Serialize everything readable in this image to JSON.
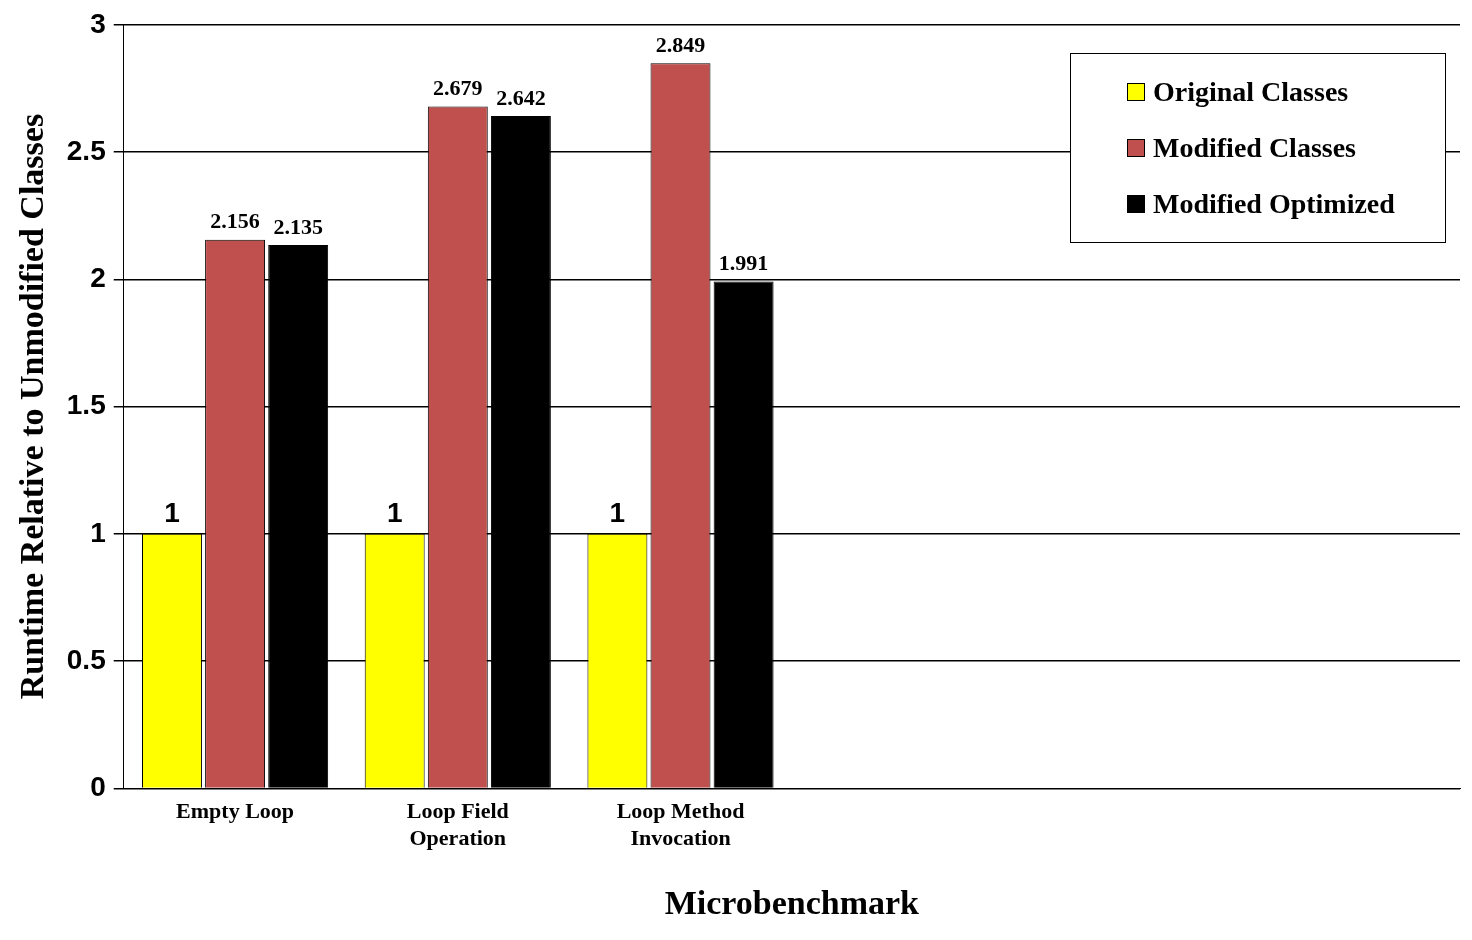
{
  "chart_data": {
    "type": "bar",
    "xlabel": "Microbenchmark",
    "ylabel": "Runtime Relative to Unmodified Classes",
    "categories": [
      "Empty Loop",
      "Loop Field Operation",
      "Loop Method Invocation",
      null,
      null,
      null
    ],
    "series": [
      {
        "name": "Original Classes",
        "color": "#ffff00",
        "values": [
          1,
          1,
          1,
          null,
          null,
          null
        ]
      },
      {
        "name": "Modified Classes",
        "color": "#c0504d",
        "values": [
          2.156,
          2.679,
          2.849,
          null,
          null,
          null
        ]
      },
      {
        "name": "Modified Optimized",
        "color": "#000000",
        "values": [
          2.135,
          2.642,
          1.991,
          null,
          null,
          null
        ]
      }
    ],
    "ylim": [
      0,
      3
    ],
    "yticks": [
      0,
      0.5,
      1,
      1.5,
      2,
      2.5,
      3
    ],
    "grid": "y",
    "legend": "top right",
    "data_labels": true
  }
}
